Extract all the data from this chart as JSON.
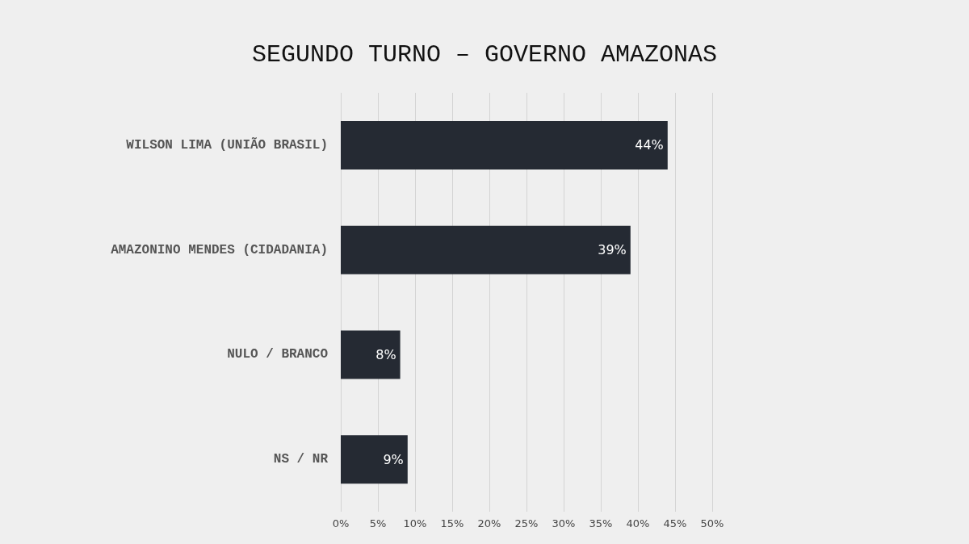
{
  "chart_data": {
    "type": "bar",
    "title": "SEGUNDO TURNO – GOVERNO AMAZONAS",
    "orientation": "horizontal",
    "categories": [
      "WILSON LIMA (UNIÃO BRASIL)",
      "AMAZONINO MENDES (CIDADANIA)",
      "NULO / BRANCO",
      "NS / NR"
    ],
    "values": [
      44,
      39,
      8,
      9
    ],
    "value_labels": [
      "44%",
      "39%",
      "8%",
      "9%"
    ],
    "color": "#252a33",
    "xlim": [
      0,
      50
    ],
    "xticks": [
      {
        "value": 0,
        "label": "0%"
      },
      {
        "value": 5,
        "label": "5%"
      },
      {
        "value": 10,
        "label": "10%"
      },
      {
        "value": 15,
        "label": "15%"
      },
      {
        "value": 20,
        "label": "20%"
      },
      {
        "value": 25,
        "label": "25%"
      },
      {
        "value": 30,
        "label": "30%"
      },
      {
        "value": 35,
        "label": "35%"
      },
      {
        "value": 40,
        "label": "40%"
      },
      {
        "value": 45,
        "label": "45%"
      },
      {
        "value": 50,
        "label": "50%"
      }
    ],
    "grid": "x"
  }
}
